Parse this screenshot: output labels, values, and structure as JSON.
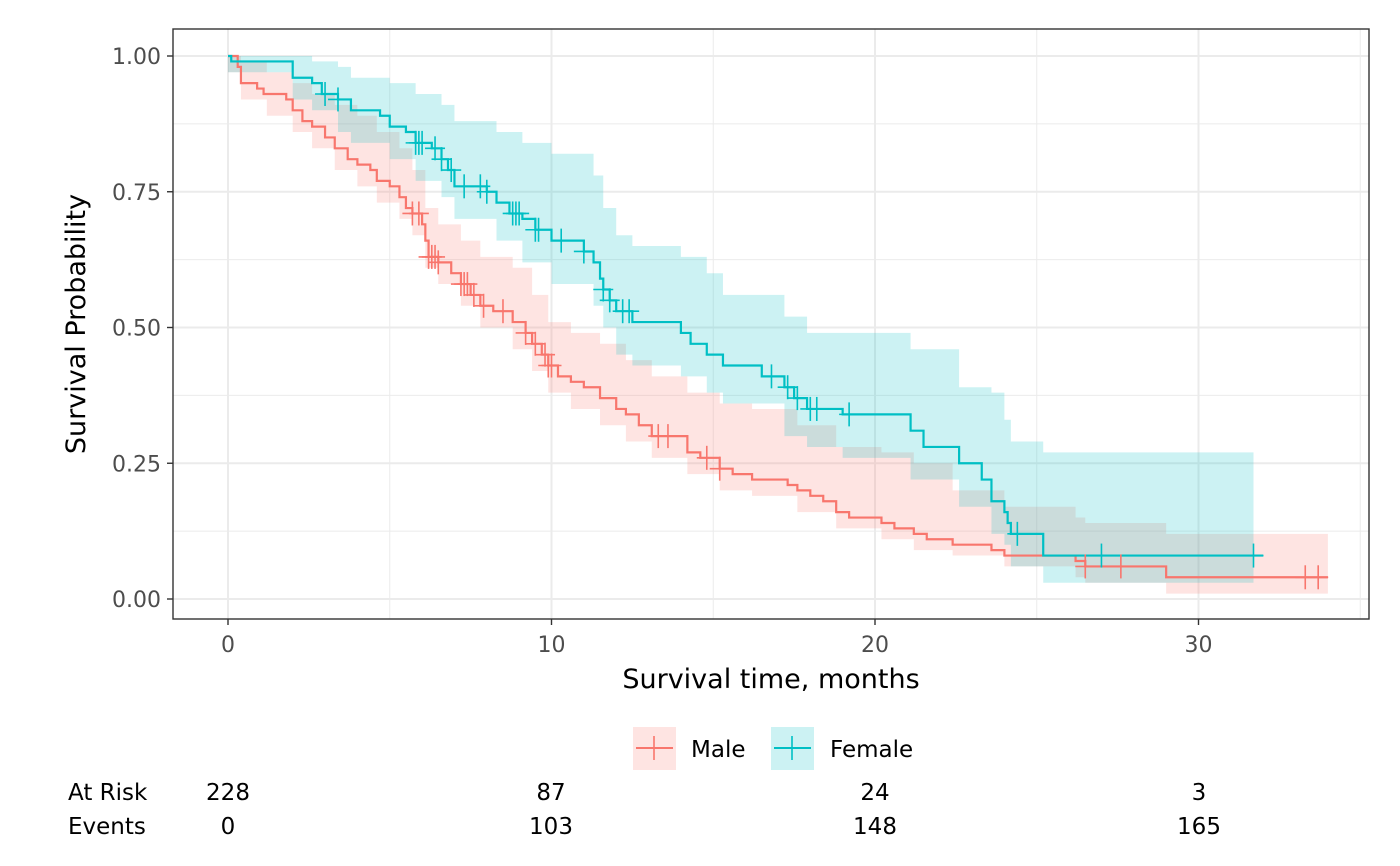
{
  "chart_data": {
    "type": "line",
    "subtype": "kaplan-meier-step",
    "title": "",
    "xlabel": "Survival time, months",
    "ylabel": "Survival Probability",
    "xlim": [
      -1.7,
      35.2
    ],
    "ylim": [
      -0.037,
      1.05
    ],
    "x_ticks": [
      0,
      10,
      20,
      30
    ],
    "x_tick_labels": [
      "0",
      "10",
      "20",
      "30"
    ],
    "x_minor_ticks": [
      5,
      15,
      25,
      35
    ],
    "y_ticks": [
      0,
      0.25,
      0.5,
      0.75,
      1.0
    ],
    "y_tick_labels": [
      "0.00",
      "0.25",
      "0.50",
      "0.75",
      "1.00"
    ],
    "y_minor_ticks": [
      0.125,
      0.375,
      0.625,
      0.875
    ],
    "grid": true,
    "legend_position": "bottom",
    "series": [
      {
        "name": "Male",
        "color": "#F8766D",
        "band_color": "#F8766D",
        "steps": [
          [
            0,
            1.0
          ],
          [
            0.3,
            0.98
          ],
          [
            0.4,
            0.95
          ],
          [
            0.9,
            0.94
          ],
          [
            1.1,
            0.93
          ],
          [
            1.8,
            0.92
          ],
          [
            2.0,
            0.9
          ],
          [
            2.3,
            0.88
          ],
          [
            2.6,
            0.87
          ],
          [
            3.0,
            0.85
          ],
          [
            3.3,
            0.83
          ],
          [
            3.7,
            0.81
          ],
          [
            4.0,
            0.8
          ],
          [
            4.4,
            0.79
          ],
          [
            4.6,
            0.77
          ],
          [
            5.0,
            0.76
          ],
          [
            5.3,
            0.74
          ],
          [
            5.5,
            0.72
          ],
          [
            5.7,
            0.71
          ],
          [
            6.0,
            0.69
          ],
          [
            6.1,
            0.66
          ],
          [
            6.2,
            0.63
          ],
          [
            6.5,
            0.62
          ],
          [
            6.9,
            0.6
          ],
          [
            7.2,
            0.58
          ],
          [
            7.5,
            0.56
          ],
          [
            7.8,
            0.54
          ],
          [
            8.2,
            0.53
          ],
          [
            8.8,
            0.51
          ],
          [
            9.2,
            0.49
          ],
          [
            9.4,
            0.47
          ],
          [
            9.7,
            0.45
          ],
          [
            9.9,
            0.43
          ],
          [
            10.2,
            0.41
          ],
          [
            10.6,
            0.4
          ],
          [
            11.0,
            0.39
          ],
          [
            11.5,
            0.37
          ],
          [
            12.0,
            0.35
          ],
          [
            12.3,
            0.34
          ],
          [
            12.7,
            0.32
          ],
          [
            13.1,
            0.3
          ],
          [
            14.2,
            0.27
          ],
          [
            14.6,
            0.26
          ],
          [
            15.2,
            0.24
          ],
          [
            15.6,
            0.23
          ],
          [
            16.2,
            0.22
          ],
          [
            17.3,
            0.21
          ],
          [
            17.6,
            0.2
          ],
          [
            18.0,
            0.19
          ],
          [
            18.4,
            0.18
          ],
          [
            18.8,
            0.16
          ],
          [
            19.2,
            0.15
          ],
          [
            20.2,
            0.14
          ],
          [
            20.6,
            0.13
          ],
          [
            21.2,
            0.12
          ],
          [
            21.6,
            0.11
          ],
          [
            22.4,
            0.1
          ],
          [
            23.6,
            0.09
          ],
          [
            24.0,
            0.08
          ],
          [
            26.2,
            0.07
          ],
          [
            26.5,
            0.06
          ],
          [
            29.0,
            0.04
          ]
        ],
        "end_x": 34.0,
        "ci_lower": [
          [
            0,
            0.97
          ],
          [
            0.4,
            0.92
          ],
          [
            1.2,
            0.89
          ],
          [
            2.0,
            0.86
          ],
          [
            2.6,
            0.83
          ],
          [
            3.3,
            0.79
          ],
          [
            4.0,
            0.76
          ],
          [
            4.6,
            0.73
          ],
          [
            5.3,
            0.7
          ],
          [
            5.7,
            0.67
          ],
          [
            6.1,
            0.61
          ],
          [
            6.5,
            0.58
          ],
          [
            7.2,
            0.54
          ],
          [
            7.8,
            0.5
          ],
          [
            8.8,
            0.46
          ],
          [
            9.4,
            0.42
          ],
          [
            9.9,
            0.38
          ],
          [
            10.6,
            0.35
          ],
          [
            11.5,
            0.32
          ],
          [
            12.3,
            0.29
          ],
          [
            13.1,
            0.26
          ],
          [
            14.2,
            0.23
          ],
          [
            15.2,
            0.2
          ],
          [
            16.2,
            0.19
          ],
          [
            17.6,
            0.16
          ],
          [
            18.8,
            0.13
          ],
          [
            20.2,
            0.11
          ],
          [
            21.2,
            0.09
          ],
          [
            22.4,
            0.08
          ],
          [
            24.0,
            0.06
          ],
          [
            26.2,
            0.04
          ],
          [
            26.5,
            0.03
          ],
          [
            29.0,
            0.01
          ]
        ],
        "ci_upper": [
          [
            0,
            1.0
          ],
          [
            0.4,
            0.99
          ],
          [
            1.2,
            0.97
          ],
          [
            2.0,
            0.95
          ],
          [
            2.6,
            0.93
          ],
          [
            3.3,
            0.91
          ],
          [
            4.0,
            0.89
          ],
          [
            4.6,
            0.86
          ],
          [
            5.3,
            0.83
          ],
          [
            5.7,
            0.79
          ],
          [
            6.1,
            0.72
          ],
          [
            6.5,
            0.69
          ],
          [
            7.2,
            0.66
          ],
          [
            7.8,
            0.63
          ],
          [
            8.8,
            0.61
          ],
          [
            9.4,
            0.56
          ],
          [
            9.9,
            0.51
          ],
          [
            10.6,
            0.49
          ],
          [
            11.5,
            0.47
          ],
          [
            12.3,
            0.44
          ],
          [
            13.1,
            0.41
          ],
          [
            14.2,
            0.38
          ],
          [
            15.2,
            0.36
          ],
          [
            16.2,
            0.35
          ],
          [
            17.6,
            0.32
          ],
          [
            18.8,
            0.28
          ],
          [
            20.2,
            0.27
          ],
          [
            21.2,
            0.25
          ],
          [
            22.4,
            0.2
          ],
          [
            24.0,
            0.17
          ],
          [
            26.2,
            0.15
          ],
          [
            26.5,
            0.14
          ],
          [
            29.0,
            0.12
          ]
        ],
        "censored": [
          5.7,
          5.9,
          6.2,
          6.3,
          6.4,
          6.5,
          7.2,
          7.3,
          7.4,
          7.6,
          7.9,
          8.5,
          9.2,
          9.5,
          9.8,
          9.9,
          10.0,
          13.3,
          13.6,
          14.8,
          15.2,
          26.5,
          27.6,
          33.3,
          33.7
        ]
      },
      {
        "name": "Female",
        "color": "#00BFC4",
        "band_color": "#00BFC4",
        "steps": [
          [
            0,
            1.0
          ],
          [
            0.1,
            0.99
          ],
          [
            2.0,
            0.96
          ],
          [
            2.6,
            0.95
          ],
          [
            2.9,
            0.93
          ],
          [
            3.4,
            0.92
          ],
          [
            3.8,
            0.9
          ],
          [
            4.7,
            0.89
          ],
          [
            5.0,
            0.87
          ],
          [
            5.5,
            0.86
          ],
          [
            5.8,
            0.84
          ],
          [
            6.3,
            0.83
          ],
          [
            6.6,
            0.81
          ],
          [
            6.8,
            0.79
          ],
          [
            7.0,
            0.76
          ],
          [
            8.0,
            0.75
          ],
          [
            8.3,
            0.73
          ],
          [
            8.7,
            0.71
          ],
          [
            9.1,
            0.7
          ],
          [
            9.5,
            0.68
          ],
          [
            10.0,
            0.66
          ],
          [
            11.0,
            0.64
          ],
          [
            11.3,
            0.62
          ],
          [
            11.5,
            0.59
          ],
          [
            11.6,
            0.57
          ],
          [
            11.8,
            0.55
          ],
          [
            12.0,
            0.53
          ],
          [
            12.5,
            0.51
          ],
          [
            14.0,
            0.49
          ],
          [
            14.3,
            0.47
          ],
          [
            14.8,
            0.45
          ],
          [
            15.3,
            0.43
          ],
          [
            16.5,
            0.41
          ],
          [
            17.2,
            0.39
          ],
          [
            17.5,
            0.37
          ],
          [
            17.9,
            0.35
          ],
          [
            19.0,
            0.34
          ],
          [
            21.1,
            0.31
          ],
          [
            21.5,
            0.28
          ],
          [
            22.6,
            0.25
          ],
          [
            23.3,
            0.22
          ],
          [
            23.6,
            0.18
          ],
          [
            24.0,
            0.16
          ],
          [
            24.1,
            0.14
          ],
          [
            24.2,
            0.12
          ],
          [
            25.2,
            0.08
          ]
        ],
        "end_x": 32.0,
        "ci_lower": [
          [
            0,
            0.97
          ],
          [
            2.0,
            0.92
          ],
          [
            2.6,
            0.9
          ],
          [
            3.4,
            0.86
          ],
          [
            3.8,
            0.84
          ],
          [
            5.0,
            0.81
          ],
          [
            5.8,
            0.77
          ],
          [
            6.6,
            0.74
          ],
          [
            7.0,
            0.7
          ],
          [
            8.3,
            0.66
          ],
          [
            9.1,
            0.62
          ],
          [
            10.0,
            0.58
          ],
          [
            11.3,
            0.54
          ],
          [
            11.6,
            0.5
          ],
          [
            12.0,
            0.45
          ],
          [
            12.5,
            0.43
          ],
          [
            14.0,
            0.41
          ],
          [
            14.8,
            0.38
          ],
          [
            15.3,
            0.36
          ],
          [
            17.2,
            0.3
          ],
          [
            17.9,
            0.28
          ],
          [
            19.0,
            0.26
          ],
          [
            21.1,
            0.22
          ],
          [
            22.6,
            0.17
          ],
          [
            23.6,
            0.12
          ],
          [
            24.0,
            0.1
          ],
          [
            24.2,
            0.06
          ],
          [
            25.2,
            0.03
          ],
          [
            31.7,
            0.03
          ]
        ],
        "ci_upper": [
          [
            0,
            1.0
          ],
          [
            2.0,
            1.0
          ],
          [
            2.6,
            0.99
          ],
          [
            3.4,
            0.98
          ],
          [
            3.8,
            0.96
          ],
          [
            5.0,
            0.95
          ],
          [
            5.8,
            0.93
          ],
          [
            6.6,
            0.91
          ],
          [
            7.0,
            0.88
          ],
          [
            8.3,
            0.86
          ],
          [
            9.1,
            0.84
          ],
          [
            10.0,
            0.82
          ],
          [
            11.3,
            0.78
          ],
          [
            11.6,
            0.72
          ],
          [
            12.0,
            0.67
          ],
          [
            12.5,
            0.65
          ],
          [
            14.0,
            0.63
          ],
          [
            14.8,
            0.6
          ],
          [
            15.3,
            0.56
          ],
          [
            17.2,
            0.52
          ],
          [
            17.9,
            0.49
          ],
          [
            19.0,
            0.49
          ],
          [
            21.1,
            0.46
          ],
          [
            22.6,
            0.39
          ],
          [
            23.6,
            0.38
          ],
          [
            24.0,
            0.33
          ],
          [
            24.2,
            0.29
          ],
          [
            25.2,
            0.27
          ],
          [
            31.7,
            0.27
          ]
        ],
        "censored": [
          3.0,
          3.4,
          5.8,
          5.9,
          6.0,
          6.4,
          6.6,
          6.9,
          7.3,
          7.8,
          8.0,
          8.8,
          8.9,
          9.0,
          9.5,
          9.6,
          10.3,
          11.0,
          11.6,
          11.8,
          12.2,
          12.4,
          16.8,
          17.3,
          17.6,
          18.0,
          18.2,
          19.2,
          24.4,
          27.0,
          31.7
        ]
      }
    ],
    "legend": [
      {
        "label": "Male",
        "color": "#F8766D"
      },
      {
        "label": "Female",
        "color": "#00BFC4"
      }
    ],
    "risk_table": {
      "times": [
        0,
        10,
        20,
        30
      ],
      "rows": [
        {
          "label": "At Risk",
          "values": [
            "228",
            "87",
            "24",
            "3"
          ]
        },
        {
          "label": "Events",
          "values": [
            "0",
            "103",
            "148",
            "165"
          ]
        }
      ]
    }
  }
}
